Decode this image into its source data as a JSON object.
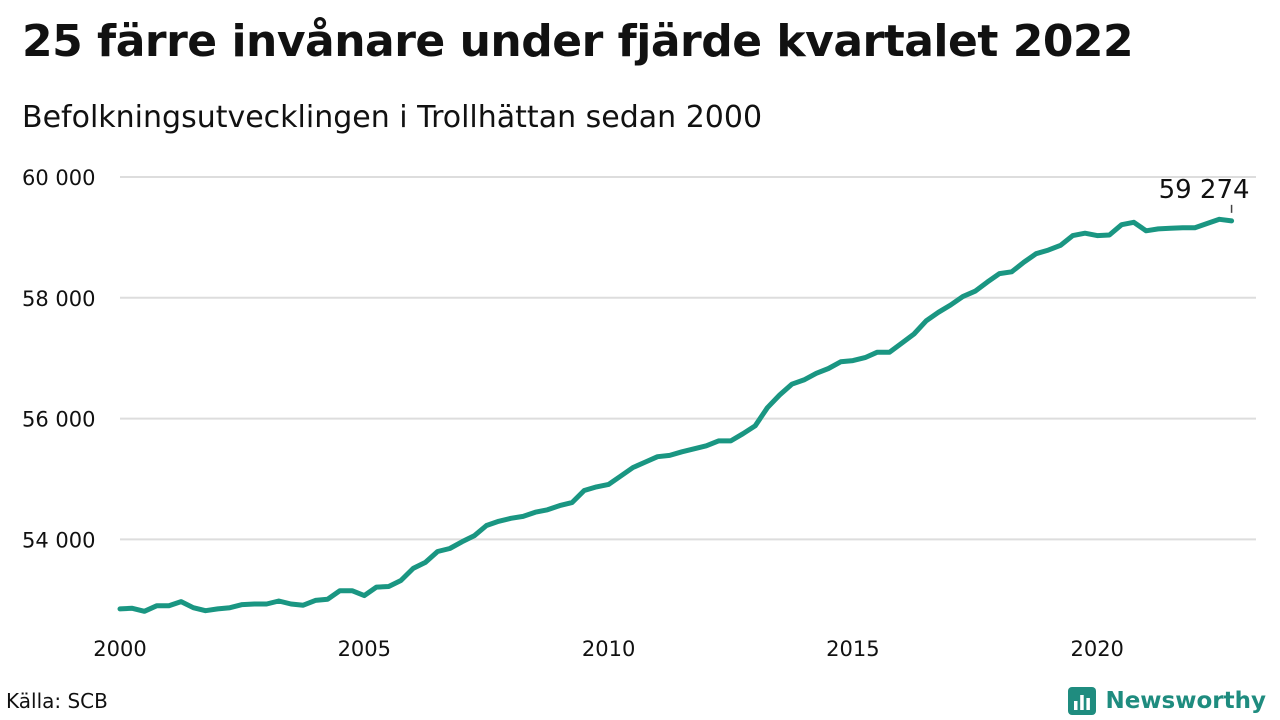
{
  "header": {
    "title": "25 färre invånare under fjärde kvartalet 2022",
    "subtitle": "Befolkningsutvecklingen i Trollhättan sedan 2000"
  },
  "footer": {
    "source": "Källa: SCB",
    "brand": "Newsworthy"
  },
  "colors": {
    "line": "#1a9682",
    "grid": "#dddddd",
    "brand": "#1f8c7f"
  },
  "chart_data": {
    "type": "line",
    "title": "25 färre invånare under fjärde kvartalet 2022",
    "subtitle": "Befolkningsutvecklingen i Trollhättan sedan 2000",
    "xlabel": "",
    "ylabel": "",
    "xlim": [
      2000,
      2023.25
    ],
    "ylim": [
      52500,
      60000
    ],
    "x_ticks": [
      2000,
      2005,
      2010,
      2015,
      2020
    ],
    "x_tick_labels": [
      "2000",
      "2005",
      "2010",
      "2015",
      "2020"
    ],
    "y_ticks": [
      54000,
      56000,
      58000,
      60000
    ],
    "y_tick_labels": [
      "54 000",
      "56 000",
      "58 000",
      "60 000"
    ],
    "grid": "horizontal",
    "legend": "none",
    "annotation": {
      "x": 2022.75,
      "y": 59274,
      "label": "59 274"
    },
    "series": [
      {
        "x": [
          2000.0,
          2000.25,
          2000.5,
          2000.75,
          2001.0,
          2001.25,
          2001.5,
          2001.75,
          2002.0,
          2002.25,
          2002.5,
          2002.75,
          2003.0,
          2003.25,
          2003.5,
          2003.75,
          2004.0,
          2004.25,
          2004.5,
          2004.75,
          2005.0,
          2005.25,
          2005.5,
          2005.75,
          2006.0,
          2006.25,
          2006.5,
          2006.75,
          2007.0,
          2007.25,
          2007.5,
          2007.75,
          2008.0,
          2008.25,
          2008.5,
          2008.75,
          2009.0,
          2009.25,
          2009.5,
          2009.75,
          2010.0,
          2010.25,
          2010.5,
          2010.75,
          2011.0,
          2011.25,
          2011.5,
          2011.75,
          2012.0,
          2012.25,
          2012.5,
          2012.75,
          2013.0,
          2013.25,
          2013.5,
          2013.75,
          2014.0,
          2014.25,
          2014.5,
          2014.75,
          2015.0,
          2015.25,
          2015.5,
          2015.75,
          2016.0,
          2016.25,
          2016.5,
          2016.75,
          2017.0,
          2017.25,
          2017.5,
          2017.75,
          2018.0,
          2018.25,
          2018.5,
          2018.75,
          2019.0,
          2019.25,
          2019.5,
          2019.75,
          2020.0,
          2020.25,
          2020.5,
          2020.75,
          2021.0,
          2021.25,
          2021.5,
          2021.75,
          2022.0,
          2022.25,
          2022.5,
          2022.75
        ],
        "y": [
          52850,
          52860,
          52810,
          52900,
          52900,
          52970,
          52870,
          52820,
          52850,
          52870,
          52920,
          52930,
          52930,
          52980,
          52930,
          52910,
          52990,
          53010,
          53150,
          53150,
          53070,
          53210,
          53220,
          53320,
          53520,
          53620,
          53800,
          53850,
          53960,
          54060,
          54230,
          54300,
          54350,
          54380,
          54450,
          54490,
          54560,
          54610,
          54810,
          54870,
          54910,
          55050,
          55190,
          55280,
          55370,
          55390,
          55450,
          55500,
          55550,
          55630,
          55630,
          55750,
          55880,
          56180,
          56390,
          56570,
          56640,
          56750,
          56830,
          56940,
          56960,
          57010,
          57100,
          57100,
          57250,
          57400,
          57620,
          57760,
          57880,
          58020,
          58110,
          58260,
          58400,
          58430,
          58590,
          58730,
          58790,
          58870,
          59030,
          59070,
          59030,
          59040,
          59210,
          59250,
          59110,
          59140,
          59150,
          59160,
          59160,
          59230,
          59299,
          59274
        ]
      }
    ]
  }
}
